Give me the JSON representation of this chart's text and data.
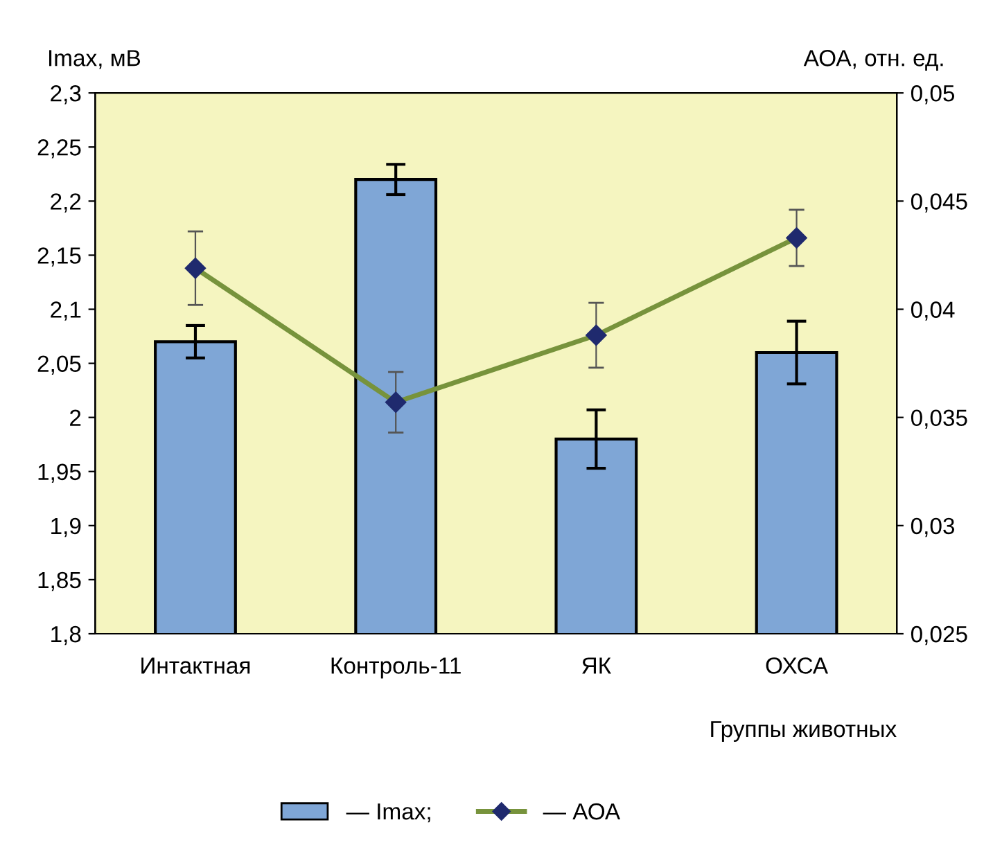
{
  "chart_data": {
    "type": "bar",
    "ylabel": "Imax, мВ",
    "y2label": "АОА, отн. ед.",
    "xlabel": "Группы животных",
    "categories": [
      "Интактная",
      "Контроль-11",
      "ЯК",
      "ОХСА"
    ],
    "series": [
      {
        "name": "— Imax;",
        "color": "#7fa6d6",
        "values": [
          2.07,
          2.22,
          1.98,
          2.06
        ],
        "errors": [
          0.015,
          0.014,
          0.027,
          0.029
        ]
      },
      {
        "name": "— АОА",
        "type": "line",
        "axis": "y2",
        "color": "#77933c",
        "marker": "diamond",
        "values": [
          0.0419,
          0.0357,
          0.0388,
          0.0433
        ],
        "errors": [
          0.0017,
          0.0014,
          0.0015,
          0.0013
        ]
      }
    ],
    "ylim": [
      1.8,
      2.3
    ],
    "yticks": [
      {
        "value": 1.8,
        "label": "1,8"
      },
      {
        "value": 1.85,
        "label": "1,85"
      },
      {
        "value": 1.9,
        "label": "1,9"
      },
      {
        "value": 1.95,
        "label": "1,95"
      },
      {
        "value": 2.0,
        "label": "2"
      },
      {
        "value": 2.05,
        "label": "2,05"
      },
      {
        "value": 2.1,
        "label": "2,1"
      },
      {
        "value": 2.15,
        "label": "2,15"
      },
      {
        "value": 2.2,
        "label": "2,2"
      },
      {
        "value": 2.25,
        "label": "2,25"
      },
      {
        "value": 2.3,
        "label": "2,3"
      }
    ],
    "y2lim": [
      0.025,
      0.05
    ],
    "y2ticks": [
      {
        "value": 0.025,
        "label": "0,025"
      },
      {
        "value": 0.03,
        "label": "0,03"
      },
      {
        "value": 0.035,
        "label": "0,035"
      },
      {
        "value": 0.04,
        "label": "0,04"
      },
      {
        "value": 0.045,
        "label": "0,045"
      },
      {
        "value": 0.05,
        "label": "0,05"
      }
    ],
    "grid": false,
    "legend": "bottom"
  }
}
